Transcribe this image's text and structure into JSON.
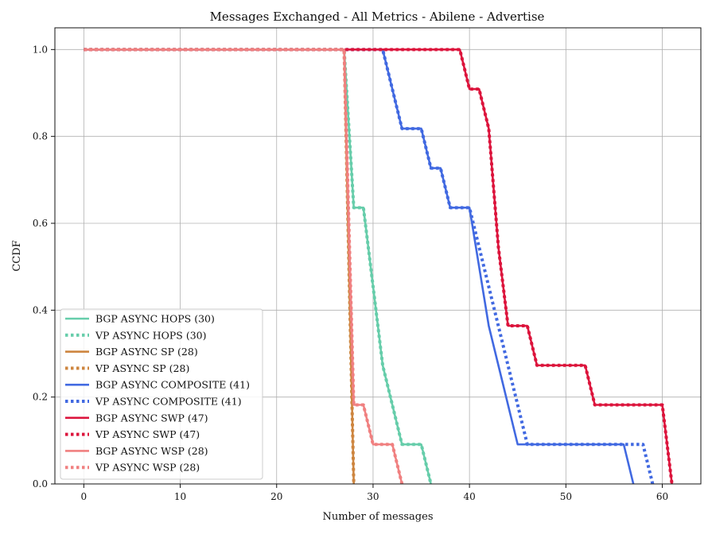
{
  "chart_data": {
    "type": "line",
    "title": "Messages Exchanged - All Metrics - Abilene - Advertise",
    "xlabel": "Number of messages",
    "ylabel": "CCDF",
    "xlim": [
      -3,
      64
    ],
    "ylim": [
      0,
      1.05
    ],
    "xticks": [
      0,
      10,
      20,
      30,
      40,
      50,
      60
    ],
    "yticks": [
      0.0,
      0.2,
      0.4,
      0.6,
      0.8,
      1.0
    ],
    "xtick_labels": [
      "0",
      "10",
      "20",
      "30",
      "40",
      "50",
      "60"
    ],
    "ytick_labels": [
      "0.0",
      "0.2",
      "0.4",
      "0.6",
      "0.8",
      "1.0"
    ],
    "grid": true,
    "legend_position": "bottom-left",
    "series": [
      {
        "name": "BGP ASYNC HOPS (30)",
        "color": "#66cdaa",
        "style": "solid",
        "x": [
          0,
          27,
          28,
          29,
          30,
          31,
          32,
          33,
          34,
          35,
          36
        ],
        "y": [
          1.0,
          1.0,
          0.636,
          0.636,
          0.455,
          0.273,
          0.182,
          0.091,
          0.091,
          0.091,
          0.0
        ]
      },
      {
        "name": "VP ASYNC HOPS (30)",
        "color": "#66cdaa",
        "style": "dotted",
        "x": [
          0,
          27,
          28,
          29,
          30,
          31,
          32,
          33,
          34,
          35,
          36
        ],
        "y": [
          1.0,
          1.0,
          0.636,
          0.636,
          0.455,
          0.273,
          0.182,
          0.091,
          0.091,
          0.091,
          0.0
        ]
      },
      {
        "name": "BGP ASYNC SP (28)",
        "color": "#cd853f",
        "style": "solid",
        "x": [
          0,
          27,
          28
        ],
        "y": [
          1.0,
          1.0,
          0.0
        ]
      },
      {
        "name": "VP ASYNC SP (28)",
        "color": "#cd853f",
        "style": "dotted",
        "x": [
          0,
          27,
          28
        ],
        "y": [
          1.0,
          1.0,
          0.0
        ]
      },
      {
        "name": "BGP ASYNC COMPOSITE (41)",
        "color": "#4169e1",
        "style": "solid",
        "x": [
          0,
          31,
          33,
          34,
          35,
          36,
          37,
          38,
          39,
          40,
          42,
          45,
          56,
          57
        ],
        "y": [
          1.0,
          1.0,
          0.818,
          0.818,
          0.818,
          0.727,
          0.727,
          0.636,
          0.636,
          0.636,
          0.364,
          0.091,
          0.091,
          0.0
        ]
      },
      {
        "name": "VP ASYNC COMPOSITE (41)",
        "color": "#4169e1",
        "style": "dotted",
        "x": [
          0,
          31,
          33,
          34,
          35,
          36,
          37,
          38,
          39,
          40,
          41,
          46,
          58,
          59
        ],
        "y": [
          1.0,
          1.0,
          0.818,
          0.818,
          0.818,
          0.727,
          0.727,
          0.636,
          0.636,
          0.636,
          0.545,
          0.091,
          0.091,
          0.0
        ]
      },
      {
        "name": "BGP ASYNC SWP (47)",
        "color": "#dc143c",
        "style": "solid",
        "x": [
          0,
          39,
          40,
          41,
          42,
          43,
          44,
          45,
          46,
          47,
          48,
          49,
          50,
          51,
          52,
          53,
          54,
          55,
          56,
          57,
          58,
          59,
          60,
          61
        ],
        "y": [
          1.0,
          1.0,
          0.909,
          0.909,
          0.818,
          0.545,
          0.364,
          0.364,
          0.364,
          0.273,
          0.273,
          0.273,
          0.273,
          0.273,
          0.273,
          0.182,
          0.182,
          0.182,
          0.182,
          0.182,
          0.182,
          0.182,
          0.182,
          0.0
        ]
      },
      {
        "name": "VP ASYNC SWP (47)",
        "color": "#dc143c",
        "style": "dotted",
        "x": [
          0,
          39,
          40,
          41,
          42,
          43,
          44,
          45,
          46,
          47,
          48,
          49,
          50,
          51,
          52,
          53,
          54,
          55,
          56,
          57,
          58,
          59,
          60,
          61
        ],
        "y": [
          1.0,
          1.0,
          0.909,
          0.909,
          0.818,
          0.545,
          0.364,
          0.364,
          0.364,
          0.273,
          0.273,
          0.273,
          0.273,
          0.273,
          0.273,
          0.182,
          0.182,
          0.182,
          0.182,
          0.182,
          0.182,
          0.182,
          0.182,
          0.0
        ]
      },
      {
        "name": "BGP ASYNC WSP (28)",
        "color": "#f08080",
        "style": "solid",
        "x": [
          0,
          27,
          28,
          29,
          30,
          31,
          32,
          33
        ],
        "y": [
          1.0,
          1.0,
          0.182,
          0.182,
          0.091,
          0.091,
          0.091,
          0.0
        ]
      },
      {
        "name": "VP ASYNC WSP (28)",
        "color": "#f08080",
        "style": "dotted",
        "x": [
          0,
          27,
          28,
          29,
          30,
          31,
          32,
          33
        ],
        "y": [
          1.0,
          1.0,
          0.182,
          0.182,
          0.091,
          0.091,
          0.091,
          0.0
        ]
      }
    ]
  }
}
